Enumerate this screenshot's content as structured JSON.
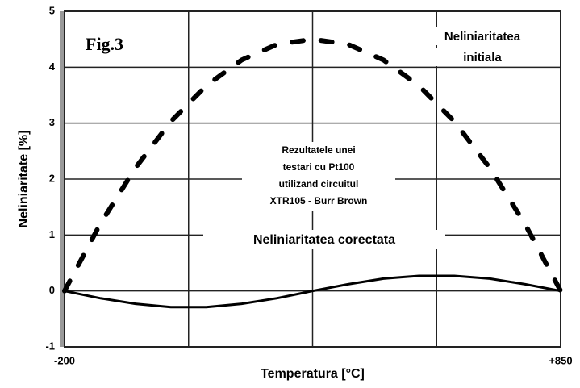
{
  "chart_data": {
    "type": "line",
    "annotations": {
      "figure": "Fig.3",
      "initial": [
        "Neliniaritatea",
        "initiala"
      ],
      "note": [
        "Rezultatele unei",
        "testari cu Pt100",
        "utilizand circuitul",
        "XTR105 - Burr Brown"
      ],
      "corrected": "Neliniaritatea corectata"
    },
    "xlabel": "Temperatura [°C]",
    "ylabel": "Neliniaritate [%]",
    "x": [
      -200,
      -125,
      -50,
      25,
      100,
      175,
      250,
      325,
      400,
      475,
      550,
      625,
      700,
      775,
      850
    ],
    "series": [
      {
        "name": "Neliniaritatea initiala",
        "color": "#000000",
        "dashed": true,
        "values": [
          0,
          1.19,
          2.2,
          3.03,
          3.67,
          4.13,
          4.41,
          4.5,
          4.41,
          4.13,
          3.67,
          3.03,
          2.2,
          1.19,
          0
        ]
      },
      {
        "name": "Neliniaritatea corectata",
        "color": "#000000",
        "dashed": false,
        "values": [
          0,
          -0.13,
          -0.23,
          -0.29,
          -0.29,
          -0.23,
          -0.13,
          0,
          0.12,
          0.22,
          0.27,
          0.27,
          0.22,
          0.12,
          0
        ]
      }
    ],
    "xlim": [
      -200,
      850
    ],
    "xticks": [
      -200,
      {
        "value": 62.5,
        "label": null
      },
      {
        "value": 325,
        "label": null
      },
      {
        "value": 587.5,
        "label": null
      },
      {
        "value": 850,
        "label": "+850"
      }
    ],
    "ylim": [
      -1,
      5
    ],
    "yticks": [
      -1,
      0,
      1,
      2,
      3,
      4,
      5
    ],
    "grid": true
  }
}
